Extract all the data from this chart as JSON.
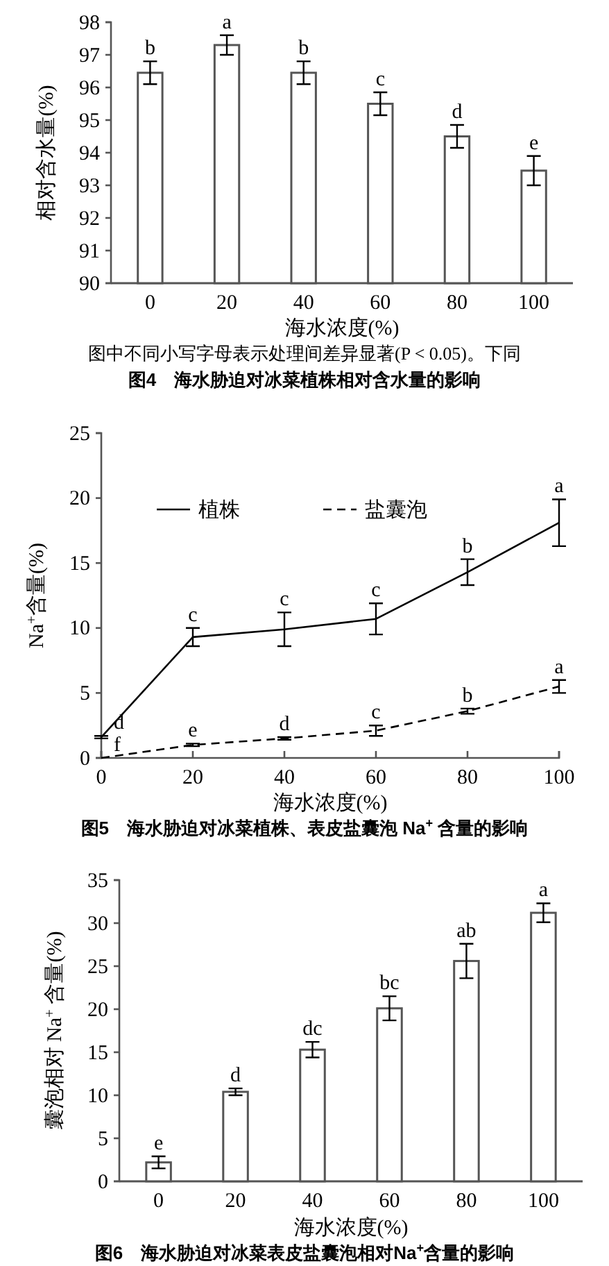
{
  "chart_data": [
    {
      "type": "bar",
      "title": "图4　海水胁迫对冰菜植株相对含水量的影响",
      "xlabel": "海水浓度(%)",
      "ylabel": "相对含水量(%)",
      "categories": [
        "0",
        "20",
        "40",
        "60",
        "80",
        "100"
      ],
      "values": [
        96.45,
        97.3,
        96.45,
        95.5,
        94.5,
        93.45
      ],
      "errors": [
        0.35,
        0.3,
        0.35,
        0.35,
        0.35,
        0.45
      ],
      "color": "#ffffff",
      "ylim": [
        90,
        98
      ],
      "yticks": [
        90,
        91,
        92,
        93,
        94,
        95,
        96,
        97,
        98
      ],
      "annotations": [
        "图中不同小写字母表示处理间差异显著(P < 0.05)。下同",
        {
          "text": "b",
          "x": "0",
          "y": 96.8
        },
        {
          "text": "a",
          "x": "20",
          "y": 97.6
        },
        {
          "text": "b",
          "x": "40",
          "y": 96.8
        },
        {
          "text": "c",
          "x": "60",
          "y": 95.85
        },
        {
          "text": "d",
          "x": "80",
          "y": 94.85
        },
        {
          "text": "e",
          "x": "100",
          "y": 93.9
        }
      ]
    },
    {
      "type": "line",
      "title": "图5　海水胁迫对冰菜植株、表皮盐囊泡 Na$^{+}$ 含量的影响",
      "xlabel": "海水浓度(%)",
      "ylabel": "Na$^{+}$含量(%)",
      "x": [
        0,
        20,
        40,
        60,
        80,
        100
      ],
      "xlim": [
        0,
        100
      ],
      "xticks": [
        0,
        20,
        40,
        60,
        80,
        100
      ],
      "ylim": [
        0,
        25
      ],
      "yticks": [
        0,
        5,
        10,
        15,
        20,
        25
      ],
      "legend": "top left",
      "marker": "none",
      "series": [
        {
          "name": "植株",
          "color": "#000000",
          "line_style": "solid",
          "values": [
            1.6,
            9.3,
            9.9,
            10.7,
            14.3,
            18.1
          ],
          "errors": [
            0.1,
            0.7,
            1.3,
            1.2,
            1.0,
            1.8
          ]
        },
        {
          "name": "盐囊泡",
          "color": "#000000",
          "line_style": "dashed",
          "values": [
            0,
            1.0,
            1.5,
            2.1,
            3.6,
            5.5
          ],
          "errors": [
            null,
            0.1,
            0.1,
            0.4,
            0.2,
            0.5
          ]
        }
      ],
      "annotations": [
        {
          "text": "d",
          "x": 0,
          "y": 1.7
        },
        {
          "text": "f",
          "x": 0,
          "y": 0
        },
        {
          "text": "c",
          "x": 20,
          "y": 10
        },
        {
          "text": "c",
          "x": 40,
          "y": 11.2
        },
        {
          "text": "c",
          "x": 60,
          "y": 11.9
        },
        {
          "text": "b",
          "x": 80,
          "y": 15.3
        },
        {
          "text": "a",
          "x": 100,
          "y": 19.9
        },
        {
          "text": "e",
          "x": 20,
          "y": 1.1
        },
        {
          "text": "d",
          "x": 40,
          "y": 1.6
        },
        {
          "text": "c",
          "x": 60,
          "y": 2.5
        },
        {
          "text": "b",
          "x": 80,
          "y": 3.8
        },
        {
          "text": "a",
          "x": 100,
          "y": 6.0
        }
      ]
    },
    {
      "type": "bar",
      "title": "图6　海水胁迫对冰菜表皮盐囊泡相对Na$^{+}$含量的影响",
      "xlabel": "海水浓度(%)",
      "ylabel": "囊泡相对 Na$^{+}$ 含量(%)",
      "categories": [
        "0",
        "20",
        "40",
        "60",
        "80",
        "100"
      ],
      "values": [
        2.2,
        10.4,
        15.3,
        20.1,
        25.6,
        31.2
      ],
      "errors": [
        0.7,
        0.4,
        0.9,
        1.4,
        2.0,
        1.1
      ],
      "color": "#ffffff",
      "ylim": [
        0,
        35
      ],
      "yticks": [
        0,
        5,
        10,
        15,
        20,
        25,
        30,
        35
      ],
      "annotations": [
        {
          "text": "e",
          "x": "0",
          "y": 2.9
        },
        {
          "text": "d",
          "x": "20",
          "y": 10.8
        },
        {
          "text": "dc",
          "x": "40",
          "y": 16.2
        },
        {
          "text": "bc",
          "x": "60",
          "y": 21.5
        },
        {
          "text": "ab",
          "x": "80",
          "y": 27.6
        },
        {
          "text": "a",
          "x": "100",
          "y": 32.3
        }
      ]
    }
  ]
}
